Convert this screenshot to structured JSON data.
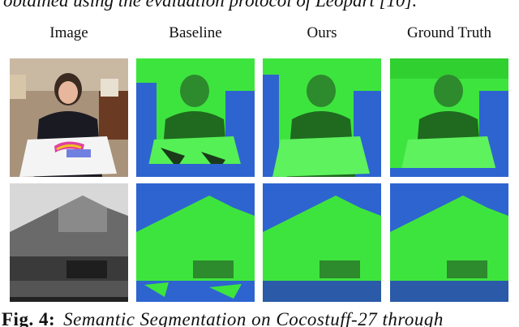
{
  "header": {
    "text": "obtained using the evaluation protocol of Leopart [10]."
  },
  "columns": [
    "Image",
    "Baseline",
    "Ours",
    "Ground Truth"
  ],
  "caption": {
    "label": "Fig. 4:",
    "text": "Semantic Segmentation on Cocostuff-27 through"
  }
}
